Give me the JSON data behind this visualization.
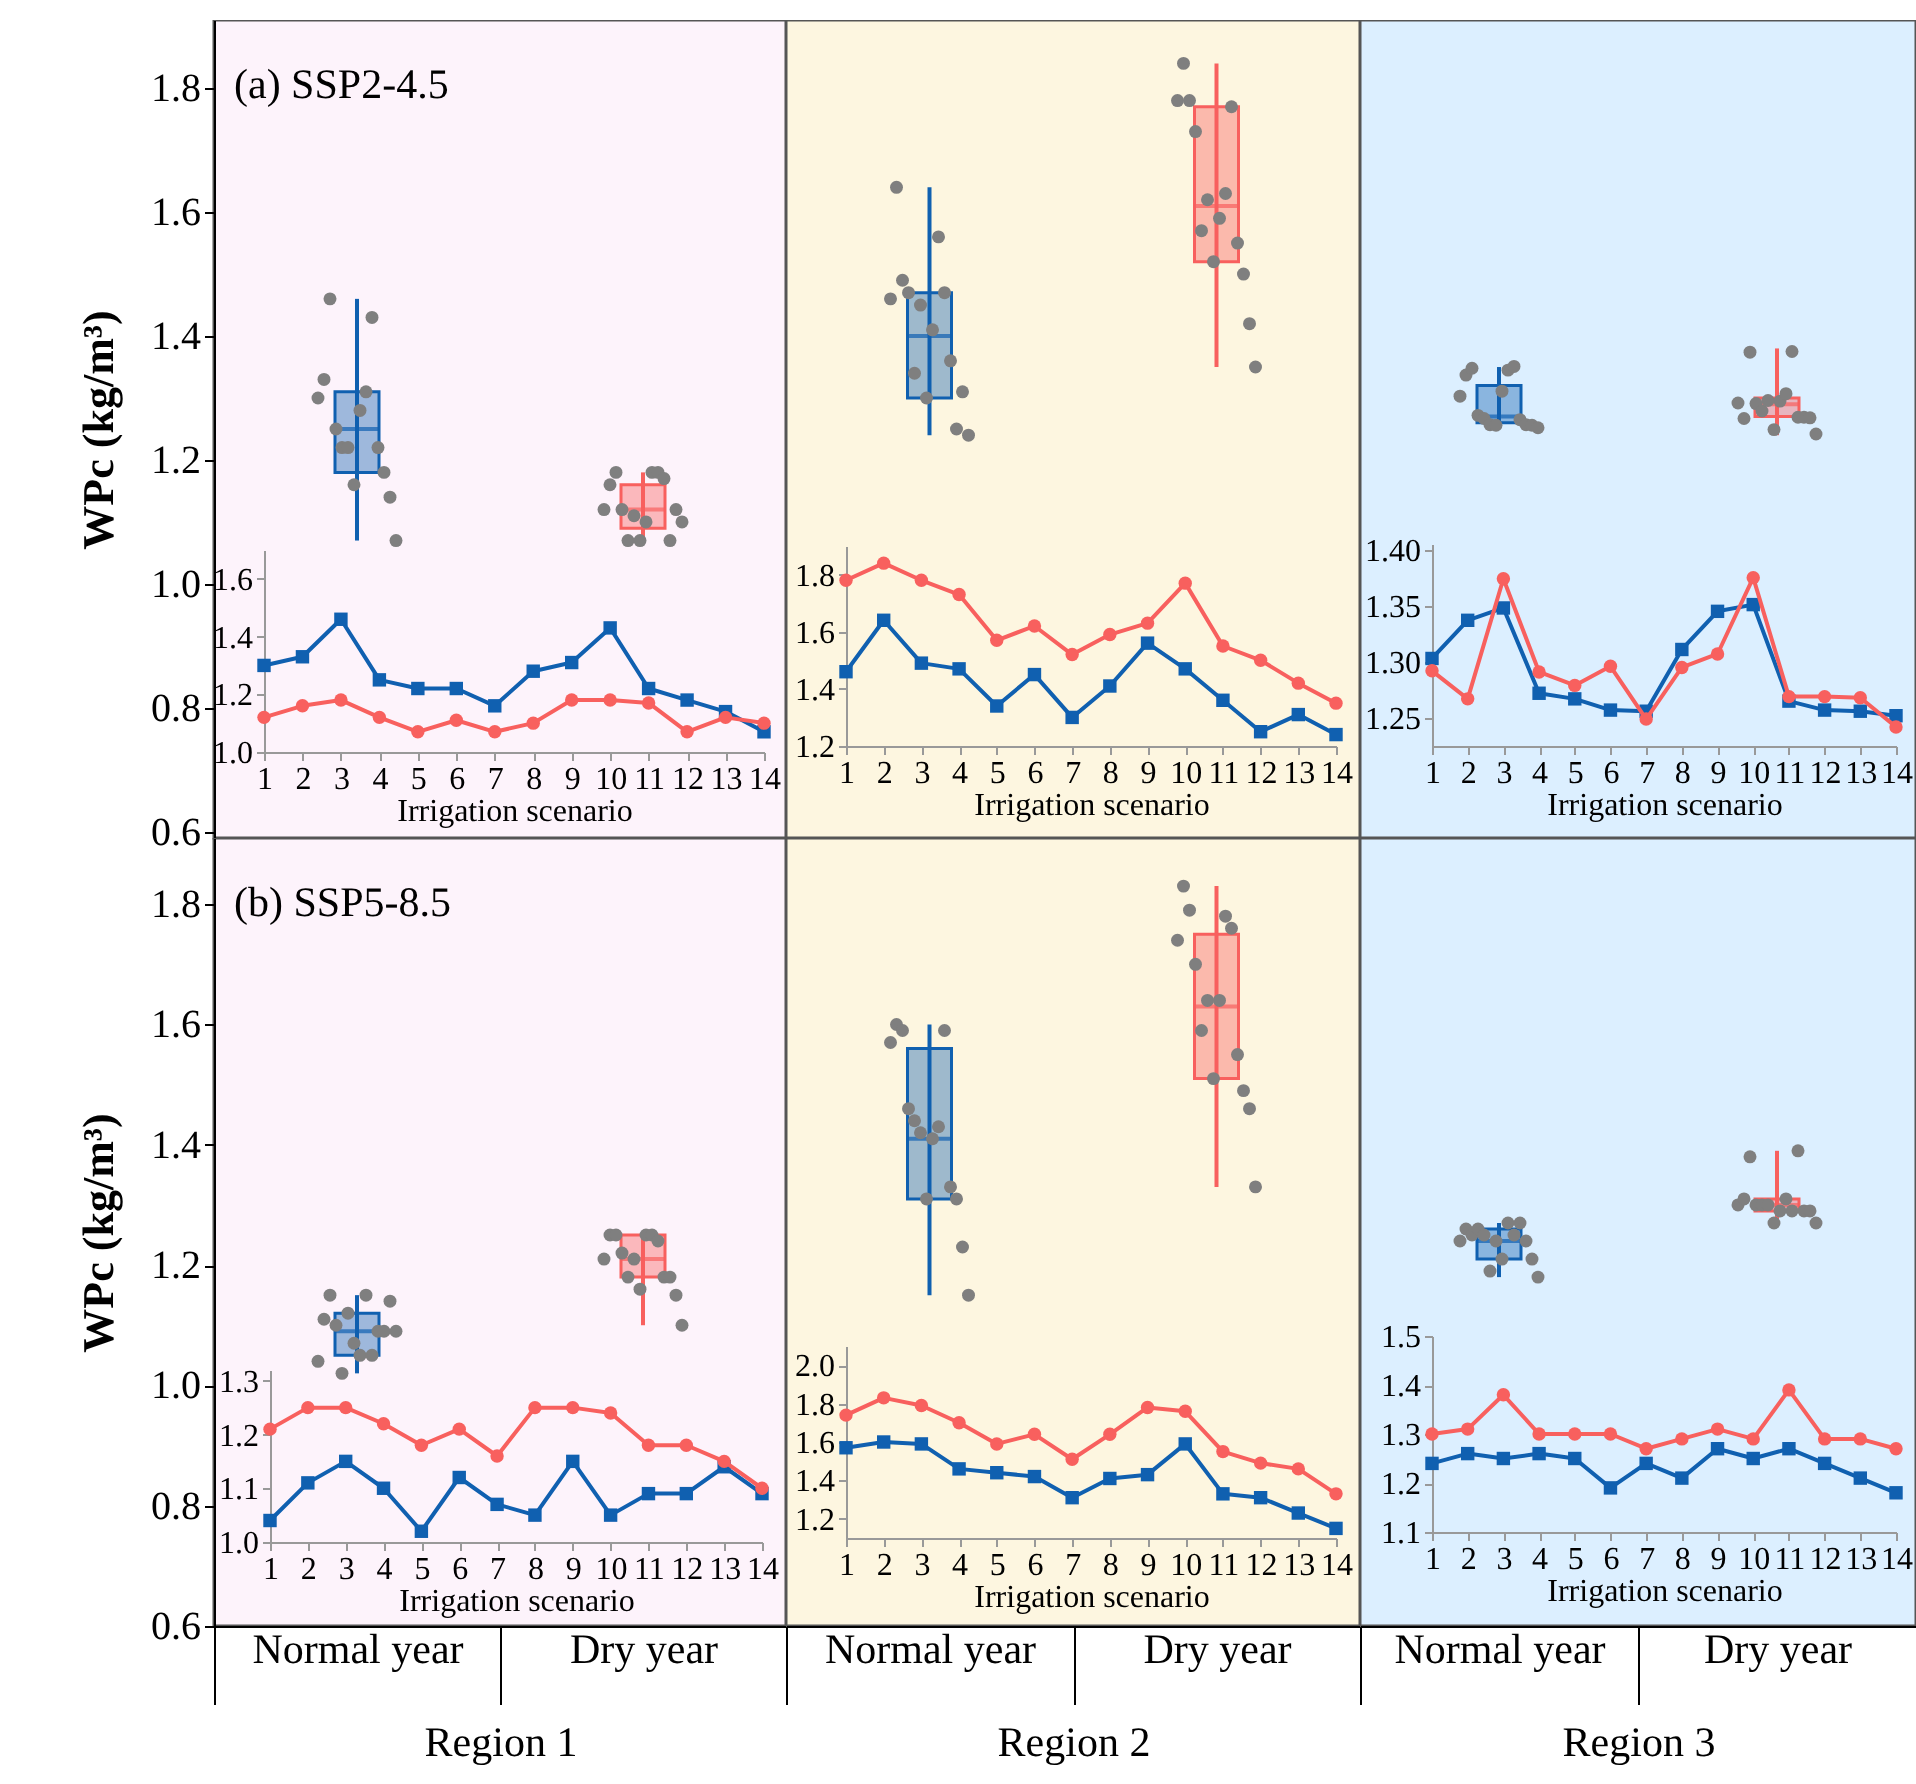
{
  "chart_data": [
    {
      "type": "box",
      "title": "(a) SSP2-4.5",
      "ylabel": "WPc (kg/m³)",
      "categories": [
        "Normal year",
        "Dry year"
      ],
      "colors": [
        "#1060b0",
        "#f8605e"
      ],
      "boxes": [
        {
          "low": 1.07,
          "q1": 1.18,
          "median": 1.25,
          "q3": 1.31,
          "high": 1.46
        },
        {
          "low": 1.07,
          "q1": 1.09,
          "median": 1.12,
          "q3": 1.16,
          "high": 1.18
        }
      ],
      "ylim": [
        0.59,
        1.91
      ],
      "yticks": [
        0.6,
        0.8,
        {
          "value": 1,
          "label": "1.0"
        },
        1.2,
        1.4,
        1.6,
        1.8
      ],
      "tick_labels": "y",
      "series": [
        {
          "type": "scatter",
          "color": "#7f7f7f",
          "x": [
            "Normal year",
            "Normal year",
            "Normal year",
            "Normal year",
            "Normal year",
            "Normal year",
            "Normal year",
            "Normal year",
            "Normal year",
            "Normal year",
            "Normal year",
            "Normal year",
            "Normal year",
            "Normal year"
          ],
          "values": [
            1.3,
            1.33,
            1.46,
            1.25,
            1.22,
            1.22,
            1.16,
            1.28,
            1.31,
            1.43,
            1.22,
            1.18,
            1.14,
            1.07
          ]
        },
        {
          "type": "scatter",
          "color": "#7f7f7f",
          "x": [
            "Dry year",
            "Dry year",
            "Dry year",
            "Dry year",
            "Dry year",
            "Dry year",
            "Dry year",
            "Dry year",
            "Dry year",
            "Dry year",
            "Dry year",
            "Dry year",
            "Dry year",
            "Dry year"
          ],
          "values": [
            1.12,
            1.16,
            1.18,
            1.12,
            1.07,
            1.11,
            1.07,
            1.1,
            1.18,
            1.18,
            1.17,
            1.07,
            1.12,
            1.1
          ]
        }
      ]
    },
    {
      "type": "line",
      "xlabel": "Irrigation scenario",
      "x": [
        1,
        2,
        3,
        4,
        5,
        6,
        7,
        8,
        9,
        10,
        11,
        12,
        13,
        14
      ],
      "xlim": [
        1,
        14
      ],
      "xticks": [
        1,
        2,
        3,
        4,
        5,
        6,
        7,
        8,
        9,
        10,
        11,
        12,
        13,
        14
      ],
      "ylim": [
        1.0,
        1.7
      ],
      "yticks": [
        {
          "value": 1,
          "label": "1.0"
        },
        1.2,
        1.4,
        1.6
      ],
      "series": [
        {
          "color": "#1060b0",
          "marker": "square",
          "values": [
            1.3,
            1.33,
            1.46,
            1.25,
            1.22,
            1.22,
            1.16,
            1.28,
            1.31,
            1.43,
            1.22,
            1.18,
            1.14,
            1.07
          ]
        },
        {
          "color": "#f8605e",
          "marker": "circle",
          "values": [
            1.12,
            1.16,
            1.18,
            1.12,
            1.07,
            1.11,
            1.07,
            1.1,
            1.18,
            1.18,
            1.17,
            1.07,
            1.12,
            1.1
          ]
        }
      ]
    },
    {
      "type": "box",
      "categories": [
        "Normal year",
        "Dry year"
      ],
      "colors": [
        "#1060b0",
        "#f8605e"
      ],
      "boxes": [
        {
          "low": 1.24,
          "q1": 1.3,
          "median": 1.4,
          "q3": 1.47,
          "high": 1.64
        },
        {
          "low": 1.35,
          "q1": 1.52,
          "median": 1.61,
          "q3": 1.77,
          "high": 1.84
        }
      ],
      "ylim": [
        0.59,
        1.91
      ],
      "tick_labels": false,
      "series": [
        {
          "type": "scatter",
          "color": "#7f7f7f",
          "x": [
            "Normal year",
            "Normal year",
            "Normal year",
            "Normal year",
            "Normal year",
            "Normal year",
            "Normal year",
            "Normal year",
            "Normal year",
            "Normal year",
            "Normal year",
            "Normal year",
            "Normal year",
            "Normal year"
          ],
          "values": [
            1.46,
            1.64,
            1.49,
            1.47,
            1.34,
            1.45,
            1.3,
            1.41,
            1.56,
            1.47,
            1.36,
            1.25,
            1.31,
            1.24
          ]
        },
        {
          "type": "scatter",
          "color": "#7f7f7f",
          "x": [
            "Dry year",
            "Dry year",
            "Dry year",
            "Dry year",
            "Dry year",
            "Dry year",
            "Dry year",
            "Dry year",
            "Dry year",
            "Dry year",
            "Dry year",
            "Dry year",
            "Dry year",
            "Dry year"
          ],
          "values": [
            1.78,
            1.84,
            1.78,
            1.73,
            1.57,
            1.62,
            1.52,
            1.59,
            1.63,
            1.77,
            1.55,
            1.5,
            1.42,
            1.35
          ]
        }
      ]
    },
    {
      "type": "line",
      "xlabel": "Irrigation scenario",
      "x": [
        1,
        2,
        3,
        4,
        5,
        6,
        7,
        8,
        9,
        10,
        11,
        12,
        13,
        14
      ],
      "xlim": [
        1,
        14
      ],
      "xticks": [
        1,
        2,
        3,
        4,
        5,
        6,
        7,
        8,
        9,
        10,
        11,
        12,
        13,
        14
      ],
      "ylim": [
        1.2,
        1.9
      ],
      "yticks": [
        1.2,
        1.4,
        1.6,
        1.8
      ],
      "series": [
        {
          "color": "#1060b0",
          "marker": "square",
          "values": [
            1.46,
            1.64,
            1.49,
            1.47,
            1.34,
            1.45,
            1.3,
            1.41,
            1.56,
            1.47,
            1.36,
            1.25,
            1.31,
            1.24
          ]
        },
        {
          "color": "#f8605e",
          "marker": "circle",
          "values": [
            1.78,
            1.84,
            1.78,
            1.73,
            1.57,
            1.62,
            1.52,
            1.59,
            1.63,
            1.77,
            1.55,
            1.5,
            1.42,
            1.35
          ]
        }
      ]
    },
    {
      "type": "box",
      "categories": [
        "Normal year",
        "Dry year"
      ],
      "colors": [
        "#1060b0",
        "#f8605e"
      ],
      "boxes": [
        {
          "low": 1.25,
          "q1": 1.26,
          "median": 1.27,
          "q3": 1.32,
          "high": 1.35
        },
        {
          "low": 1.24,
          "q1": 1.27,
          "median": 1.29,
          "q3": 1.3,
          "high": 1.38
        }
      ],
      "ylim": [
        0.59,
        1.91
      ],
      "tick_labels": false,
      "series": [
        {
          "type": "scatter",
          "color": "#7f7f7f",
          "x": [
            "Normal year",
            "Normal year",
            "Normal year",
            "Normal year",
            "Normal year",
            "Normal year",
            "Normal year",
            "Normal year",
            "Normal year",
            "Normal year",
            "Normal year",
            "Normal year",
            "Normal year",
            "Normal year"
          ],
          "values": [
            1.303,
            1.337,
            1.348,
            1.272,
            1.267,
            1.257,
            1.256,
            1.311,
            1.345,
            1.351,
            1.265,
            1.257,
            1.256,
            1.252
          ]
        },
        {
          "type": "scatter",
          "color": "#7f7f7f",
          "x": [
            "Dry year",
            "Dry year",
            "Dry year",
            "Dry year",
            "Dry year",
            "Dry year",
            "Dry year",
            "Dry year",
            "Dry year",
            "Dry year",
            "Dry year",
            "Dry year",
            "Dry year",
            "Dry year"
          ],
          "values": [
            1.292,
            1.267,
            1.374,
            1.291,
            1.279,
            1.296,
            1.249,
            1.295,
            1.307,
            1.375,
            1.269,
            1.269,
            1.268,
            1.242
          ]
        }
      ]
    },
    {
      "type": "line",
      "xlabel": "Irrigation scenario",
      "x": [
        1,
        2,
        3,
        4,
        5,
        6,
        7,
        8,
        9,
        10,
        11,
        12,
        13,
        14
      ],
      "xlim": [
        1,
        14
      ],
      "xticks": [
        1,
        2,
        3,
        4,
        5,
        6,
        7,
        8,
        9,
        10,
        11,
        12,
        13,
        14
      ],
      "ylim": [
        1.225,
        1.405
      ],
      "yticks": [
        1.25,
        {
          "value": 1.3,
          "label": "1.30"
        },
        1.35,
        {
          "value": 1.4,
          "label": "1.40"
        }
      ],
      "series": [
        {
          "color": "#1060b0",
          "marker": "square",
          "values": [
            1.303,
            1.337,
            1.348,
            1.272,
            1.267,
            1.257,
            1.256,
            1.311,
            1.345,
            1.351,
            1.265,
            1.257,
            1.256,
            1.252
          ]
        },
        {
          "color": "#f8605e",
          "marker": "circle",
          "values": [
            1.292,
            1.267,
            1.374,
            1.291,
            1.279,
            1.296,
            1.249,
            1.295,
            1.307,
            1.375,
            1.269,
            1.269,
            1.268,
            1.242
          ]
        }
      ]
    },
    {
      "type": "box",
      "title": "(b) SSP5-8.5",
      "ylabel": "WPc (kg/m³)",
      "xlabel": "Region 1",
      "categories": [
        "Normal year",
        "Dry year"
      ],
      "colors": [
        "#1060b0",
        "#f8605e"
      ],
      "boxes": [
        {
          "low": 1.02,
          "q1": 1.05,
          "median": 1.09,
          "q3": 1.12,
          "high": 1.15
        },
        {
          "low": 1.1,
          "q1": 1.18,
          "median": 1.21,
          "q3": 1.25,
          "high": 1.25
        }
      ],
      "ylim": [
        0.6,
        1.91
      ],
      "yticks": [
        0.6,
        0.8,
        {
          "value": 1,
          "label": "1.0"
        },
        1.2,
        1.4,
        1.6,
        1.8
      ],
      "series": [
        {
          "type": "scatter",
          "color": "#7f7f7f",
          "x": [
            "Normal year",
            "Normal year",
            "Normal year",
            "Normal year",
            "Normal year",
            "Normal year",
            "Normal year",
            "Normal year",
            "Normal year",
            "Normal year",
            "Normal year",
            "Normal year",
            "Normal year",
            "Normal year"
          ],
          "values": [
            1.04,
            1.11,
            1.15,
            1.1,
            1.02,
            1.12,
            1.07,
            1.05,
            1.15,
            1.05,
            1.09,
            1.09,
            1.14,
            1.09
          ]
        },
        {
          "type": "scatter",
          "color": "#7f7f7f",
          "x": [
            "Dry year",
            "Dry year",
            "Dry year",
            "Dry year",
            "Dry year",
            "Dry year",
            "Dry year",
            "Dry year",
            "Dry year",
            "Dry year",
            "Dry year",
            "Dry year",
            "Dry year",
            "Dry year"
          ],
          "values": [
            1.21,
            1.25,
            1.25,
            1.22,
            1.18,
            1.21,
            1.16,
            1.25,
            1.25,
            1.24,
            1.18,
            1.18,
            1.15,
            1.1
          ]
        }
      ]
    },
    {
      "type": "line",
      "xlabel": "Irrigation scenario",
      "x": [
        1,
        2,
        3,
        4,
        5,
        6,
        7,
        8,
        9,
        10,
        11,
        12,
        13,
        14
      ],
      "xlim": [
        1,
        14
      ],
      "xticks": [
        1,
        2,
        3,
        4,
        5,
        6,
        7,
        8,
        9,
        10,
        11,
        12,
        13,
        14
      ],
      "ylim": [
        1.0,
        1.32
      ],
      "yticks": [
        {
          "value": 1,
          "label": "1.0"
        },
        1.1,
        1.2,
        1.3
      ],
      "series": [
        {
          "color": "#1060b0",
          "marker": "square",
          "values": [
            1.04,
            1.11,
            1.15,
            1.1,
            1.02,
            1.12,
            1.07,
            1.05,
            1.15,
            1.05,
            1.09,
            1.09,
            1.14,
            1.09
          ]
        },
        {
          "color": "#f8605e",
          "marker": "circle",
          "values": [
            1.21,
            1.25,
            1.25,
            1.22,
            1.18,
            1.21,
            1.16,
            1.25,
            1.25,
            1.24,
            1.18,
            1.18,
            1.15,
            1.1
          ]
        }
      ]
    },
    {
      "type": "box",
      "xlabel": "Region 2",
      "categories": [
        "Normal year",
        "Dry year"
      ],
      "colors": [
        "#1060b0",
        "#f8605e"
      ],
      "boxes": [
        {
          "low": 1.15,
          "q1": 1.31,
          "median": 1.41,
          "q3": 1.56,
          "high": 1.6
        },
        {
          "low": 1.33,
          "q1": 1.51,
          "median": 1.63,
          "q3": 1.75,
          "high": 1.83
        }
      ],
      "ylim": [
        0.6,
        1.91
      ],
      "tick_labels": "x",
      "series": [
        {
          "type": "scatter",
          "color": "#7f7f7f",
          "x": [
            "Normal year",
            "Normal year",
            "Normal year",
            "Normal year",
            "Normal year",
            "Normal year",
            "Normal year",
            "Normal year",
            "Normal year",
            "Normal year",
            "Normal year",
            "Normal year",
            "Normal year",
            "Normal year"
          ],
          "values": [
            1.57,
            1.6,
            1.59,
            1.46,
            1.44,
            1.42,
            1.31,
            1.41,
            1.43,
            1.59,
            1.33,
            1.31,
            1.23,
            1.15
          ]
        },
        {
          "type": "scatter",
          "color": "#7f7f7f",
          "x": [
            "Dry year",
            "Dry year",
            "Dry year",
            "Dry year",
            "Dry year",
            "Dry year",
            "Dry year",
            "Dry year",
            "Dry year",
            "Dry year",
            "Dry year",
            "Dry year",
            "Dry year",
            "Dry year"
          ],
          "values": [
            1.74,
            1.83,
            1.79,
            1.7,
            1.59,
            1.64,
            1.51,
            1.64,
            1.78,
            1.76,
            1.55,
            1.49,
            1.46,
            1.33
          ]
        }
      ]
    },
    {
      "type": "line",
      "xlabel": "Irrigation scenario",
      "x": [
        1,
        2,
        3,
        4,
        5,
        6,
        7,
        8,
        9,
        10,
        11,
        12,
        13,
        14
      ],
      "xlim": [
        1,
        14
      ],
      "xticks": [
        1,
        2,
        3,
        4,
        5,
        6,
        7,
        8,
        9,
        10,
        11,
        12,
        13,
        14
      ],
      "ylim": [
        1.1,
        2.1
      ],
      "yticks": [
        1.2,
        1.4,
        1.6,
        1.8,
        {
          "value": 2,
          "label": "2.0"
        }
      ],
      "series": [
        {
          "color": "#1060b0",
          "marker": "square",
          "values": [
            1.57,
            1.6,
            1.59,
            1.46,
            1.44,
            1.42,
            1.31,
            1.41,
            1.43,
            1.59,
            1.33,
            1.31,
            1.23,
            1.15
          ]
        },
        {
          "color": "#f8605e",
          "marker": "circle",
          "values": [
            1.74,
            1.83,
            1.79,
            1.7,
            1.59,
            1.64,
            1.51,
            1.64,
            1.78,
            1.76,
            1.55,
            1.49,
            1.46,
            1.33
          ]
        }
      ]
    },
    {
      "type": "box",
      "xlabel": "Region 3",
      "categories": [
        "Normal year",
        "Dry year"
      ],
      "colors": [
        "#1060b0",
        "#f8605e"
      ],
      "boxes": [
        {
          "low": 1.18,
          "q1": 1.21,
          "median": 1.24,
          "q3": 1.26,
          "high": 1.27
        },
        {
          "low": 1.27,
          "q1": 1.29,
          "median": 1.3,
          "q3": 1.31,
          "high": 1.39
        }
      ],
      "ylim": [
        0.6,
        1.91
      ],
      "tick_labels": "x",
      "series": [
        {
          "type": "scatter",
          "color": "#7f7f7f",
          "x": [
            "Normal year",
            "Normal year",
            "Normal year",
            "Normal year",
            "Normal year",
            "Normal year",
            "Normal year",
            "Normal year",
            "Normal year",
            "Normal year",
            "Normal year",
            "Normal year",
            "Normal year",
            "Normal year"
          ],
          "values": [
            1.24,
            1.26,
            1.25,
            1.26,
            1.25,
            1.19,
            1.24,
            1.21,
            1.27,
            1.25,
            1.27,
            1.24,
            1.21,
            1.18
          ]
        },
        {
          "type": "scatter",
          "color": "#7f7f7f",
          "x": [
            "Dry year",
            "Dry year",
            "Dry year",
            "Dry year",
            "Dry year",
            "Dry year",
            "Dry year",
            "Dry year",
            "Dry year",
            "Dry year",
            "Dry year",
            "Dry year",
            "Dry year",
            "Dry year"
          ],
          "values": [
            1.3,
            1.31,
            1.38,
            1.3,
            1.3,
            1.3,
            1.27,
            1.29,
            1.31,
            1.29,
            1.39,
            1.29,
            1.29,
            1.27
          ]
        }
      ]
    },
    {
      "type": "line",
      "xlabel": "Irrigation scenario",
      "x": [
        1,
        2,
        3,
        4,
        5,
        6,
        7,
        8,
        9,
        10,
        11,
        12,
        13,
        14
      ],
      "xlim": [
        1,
        14
      ],
      "xticks": [
        1,
        2,
        3,
        4,
        5,
        6,
        7,
        8,
        9,
        10,
        11,
        12,
        13,
        14
      ],
      "ylim": [
        1.1,
        1.5
      ],
      "yticks": [
        1.1,
        1.2,
        1.3,
        1.4,
        1.5
      ],
      "series": [
        {
          "color": "#1060b0",
          "marker": "square",
          "values": [
            1.24,
            1.26,
            1.25,
            1.26,
            1.25,
            1.19,
            1.24,
            1.21,
            1.27,
            1.25,
            1.27,
            1.24,
            1.21,
            1.18
          ]
        },
        {
          "color": "#f8605e",
          "marker": "circle",
          "values": [
            1.3,
            1.31,
            1.38,
            1.3,
            1.3,
            1.3,
            1.27,
            1.29,
            1.31,
            1.29,
            1.39,
            1.29,
            1.29,
            1.27
          ]
        }
      ]
    }
  ]
}
